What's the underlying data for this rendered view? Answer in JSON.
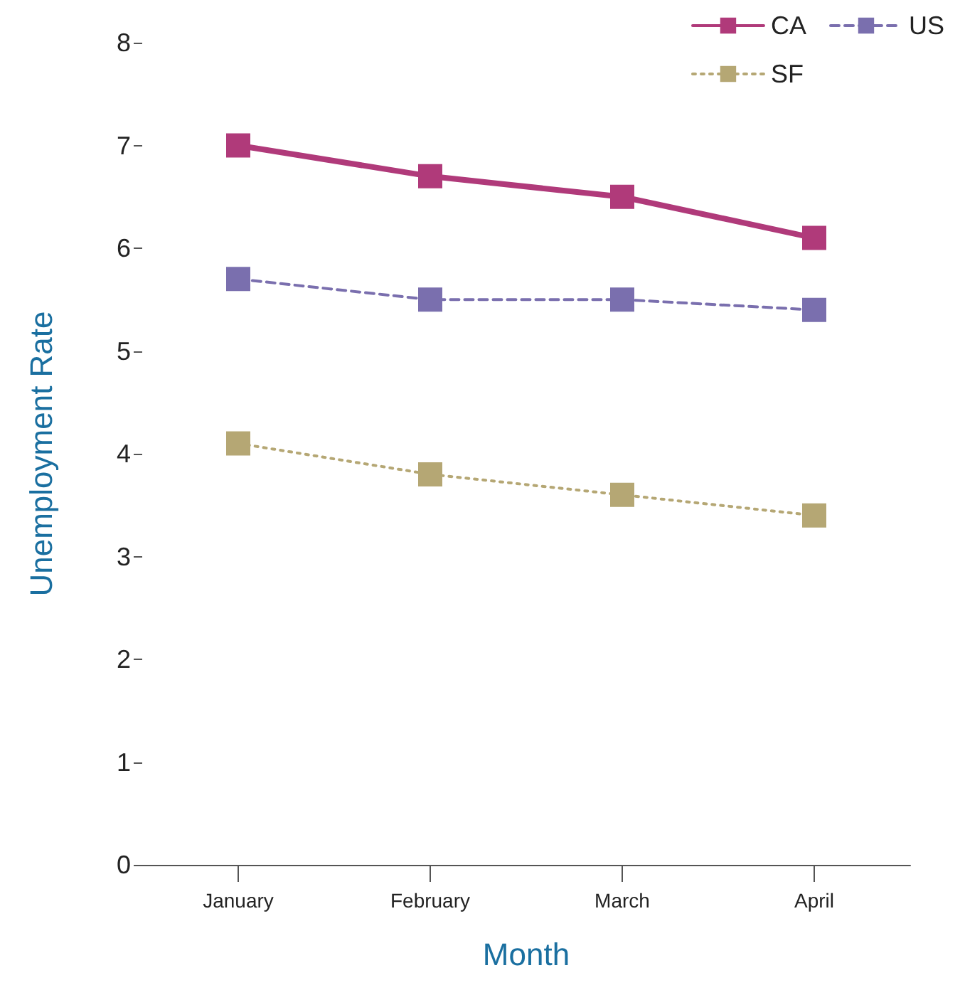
{
  "chart_data": {
    "type": "line",
    "xlabel": "Month",
    "ylabel": "Unemployment Rate",
    "categories": [
      "January",
      "February",
      "March",
      "April"
    ],
    "series": [
      {
        "name": "CA",
        "color": "#b03a7a",
        "values": [
          7.0,
          6.7,
          6.5,
          6.1
        ],
        "line_style": "solid"
      },
      {
        "name": "US",
        "color": "#7a6fae",
        "values": [
          5.7,
          5.5,
          5.5,
          5.4
        ],
        "line_style": "dashed"
      },
      {
        "name": "SF",
        "color": "#b5a774",
        "values": [
          4.1,
          3.8,
          3.6,
          3.4
        ],
        "line_style": "dotted"
      }
    ],
    "ylim": [
      0,
      8
    ],
    "yticks": [
      0,
      1,
      2,
      3,
      4,
      5,
      6,
      7,
      8
    ],
    "grid": false,
    "legend": "top right",
    "marker": "square"
  }
}
